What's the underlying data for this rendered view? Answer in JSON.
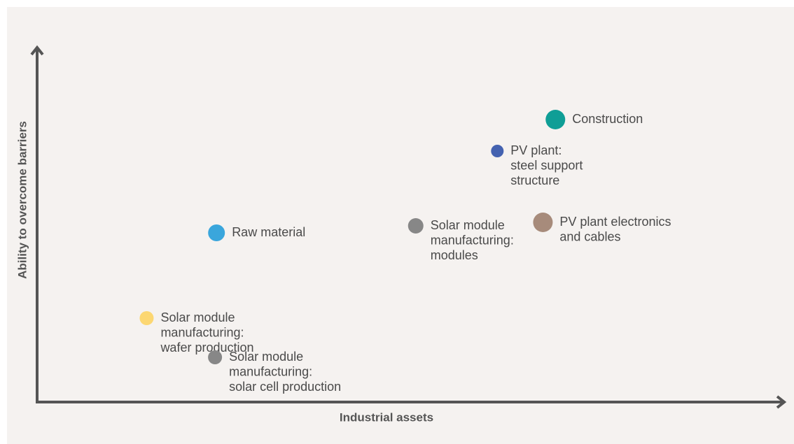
{
  "chart_data": {
    "type": "scatter",
    "x_label": "Industrial assets",
    "y_label": "Ability to overcome barriers",
    "xlim": [
      0,
      100
    ],
    "ylim": [
      0,
      100
    ],
    "x": [
      70.5,
      62.6,
      68.8,
      51.5,
      24.4,
      14.9,
      24.2
    ],
    "values": [
      80.8,
      71.8,
      51.4,
      50.4,
      48.4,
      24,
      12.8
    ],
    "sizes": [
      14,
      9,
      14,
      11,
      12,
      10,
      10
    ],
    "colors": [
      "#0f9e96",
      "#4462b0",
      "#a78b7b",
      "#878787",
      "#3aa6dc",
      "#fcd772",
      "#878787"
    ],
    "labels": [
      [
        "Construction"
      ],
      [
        "PV plant:",
        "steel support",
        "structure"
      ],
      [
        "PV plant electronics",
        "and cables"
      ],
      [
        "Solar module",
        "manufacturing:",
        "modules"
      ],
      [
        "Raw material"
      ],
      [
        "Solar module",
        "manufacturing:",
        "wafer production"
      ],
      [
        "Solar module",
        "manufacturing:",
        "solar cell production"
      ]
    ]
  }
}
